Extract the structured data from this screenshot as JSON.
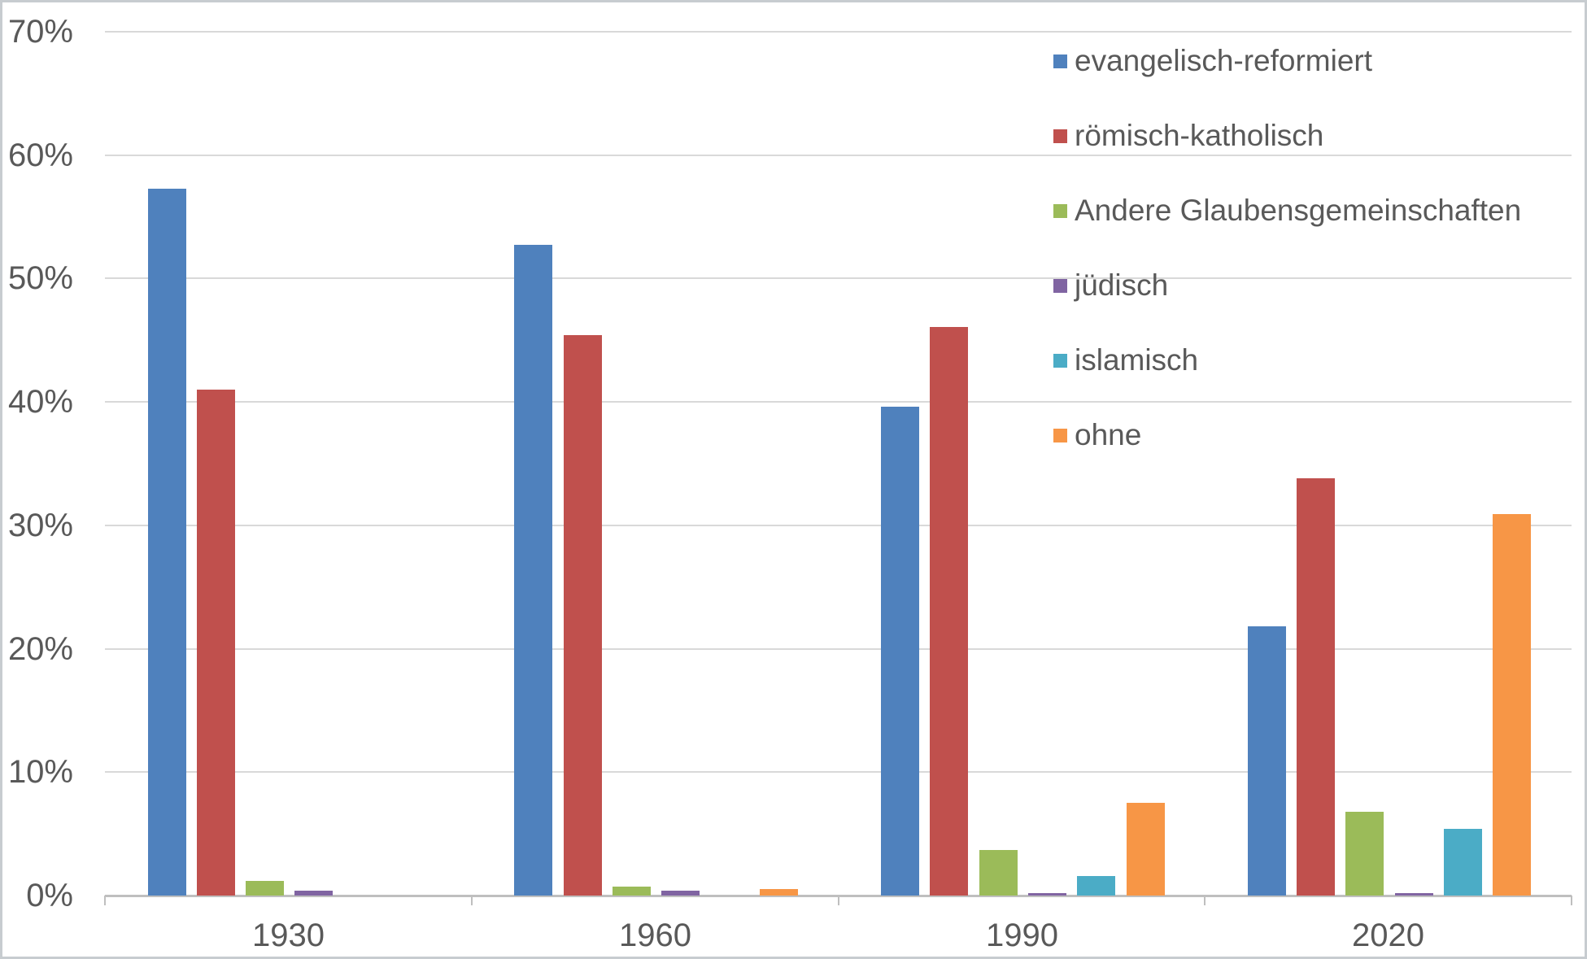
{
  "chart_data": {
    "type": "bar",
    "title": "",
    "xlabel": "",
    "ylabel": "",
    "categories": [
      "1930",
      "1960",
      "1990",
      "2020"
    ],
    "series": [
      {
        "name": "evangelisch-reformiert",
        "color": "#4F81BD",
        "values": [
          57.3,
          52.7,
          39.6,
          21.8
        ]
      },
      {
        "name": "römisch-katholisch",
        "color": "#C0504D",
        "values": [
          41.0,
          45.4,
          46.1,
          33.8
        ]
      },
      {
        "name": "Andere Glaubensgemeinschaften",
        "color": "#9BBB59",
        "values": [
          1.2,
          0.7,
          3.7,
          6.8
        ]
      },
      {
        "name": "jüdisch",
        "color": "#8064A2",
        "values": [
          0.4,
          0.4,
          0.2,
          0.2
        ]
      },
      {
        "name": "islamisch",
        "color": "#4BACC6",
        "values": [
          0.0,
          0.0,
          1.6,
          5.4
        ]
      },
      {
        "name": "ohne",
        "color": "#F79646",
        "values": [
          0.0,
          0.5,
          7.5,
          30.9
        ]
      }
    ],
    "ylim": [
      0,
      70
    ],
    "ytick_labels": [
      "0%",
      "10%",
      "20%",
      "30%",
      "40%",
      "50%",
      "60%",
      "70%"
    ],
    "grid": true,
    "legend_position": "top-right"
  },
  "style": {
    "axis_text_color": "#595959",
    "gridline_color": "#D9D9D9",
    "axis_line_color": "#BFBFBF",
    "background_color": "#FFFFFF"
  }
}
